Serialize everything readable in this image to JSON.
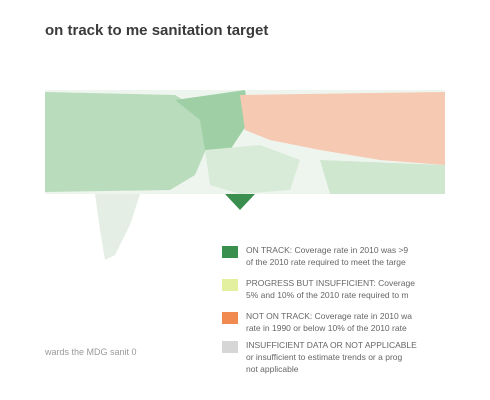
{
  "header": {
    "title": "on track to me sanitation target"
  },
  "caption": "wards the MDG sanit 0",
  "legend": [
    {
      "lines": [
        "ON TRACK: Coverage rate in 2010 was >9",
        "of the 2010 rate required to meet the targe"
      ]
    },
    {
      "lines": [
        "PROGRESS BUT INSUFFICIENT: Coverage",
        "5% and 10% of the 2010 rate required to m"
      ]
    },
    {
      "lines": [
        "NOT ON TRACK: Coverage rate in 2010 wa",
        "rate in 1990 or below 10% of the 2010 rate"
      ]
    },
    {
      "lines": [
        "INSUFFICIENT DATA OR NOT APPLICABLE",
        "or insufficient to estimate trends or a prog",
        "not applicable"
      ]
    }
  ]
}
